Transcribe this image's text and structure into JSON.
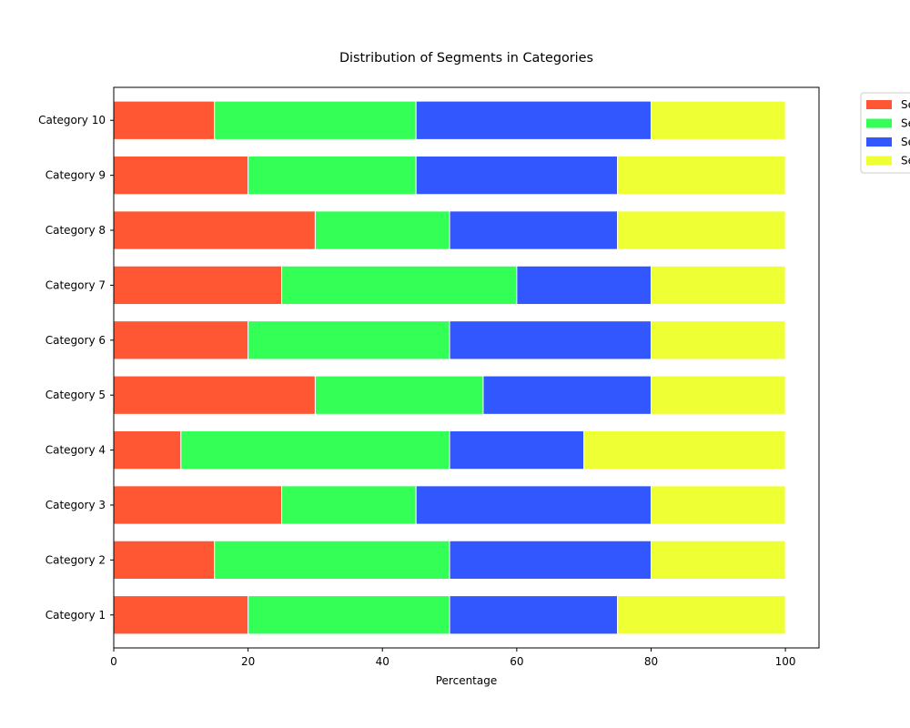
{
  "chart_data": {
    "type": "bar",
    "orientation": "horizontal",
    "stacked": true,
    "title": "Distribution of Segments in Categories",
    "xlabel": "Percentage",
    "ylabel": "",
    "xlim": [
      0,
      105
    ],
    "xticks": [
      "0",
      "20",
      "40",
      "60",
      "80",
      "100"
    ],
    "categories": [
      "Category 1",
      "Category 2",
      "Category 3",
      "Category 4",
      "Category 5",
      "Category 6",
      "Category 7",
      "Category 8",
      "Category 9",
      "Category 10"
    ],
    "series": [
      {
        "legend_label": "Se",
        "color": "#ff5733",
        "values": [
          20,
          15,
          25,
          10,
          30,
          20,
          25,
          30,
          20,
          15
        ]
      },
      {
        "legend_label": "Se",
        "color": "#33ff57",
        "values": [
          30,
          35,
          20,
          40,
          25,
          30,
          35,
          20,
          25,
          30
        ]
      },
      {
        "legend_label": "Se",
        "color": "#3357ff",
        "values": [
          25,
          30,
          35,
          20,
          25,
          30,
          20,
          25,
          30,
          35
        ]
      },
      {
        "legend_label": "Se",
        "color": "#eeff33",
        "values": [
          25,
          20,
          20,
          30,
          20,
          20,
          20,
          25,
          25,
          20
        ]
      }
    ],
    "grid": false,
    "legend_position": "outside top-right"
  }
}
